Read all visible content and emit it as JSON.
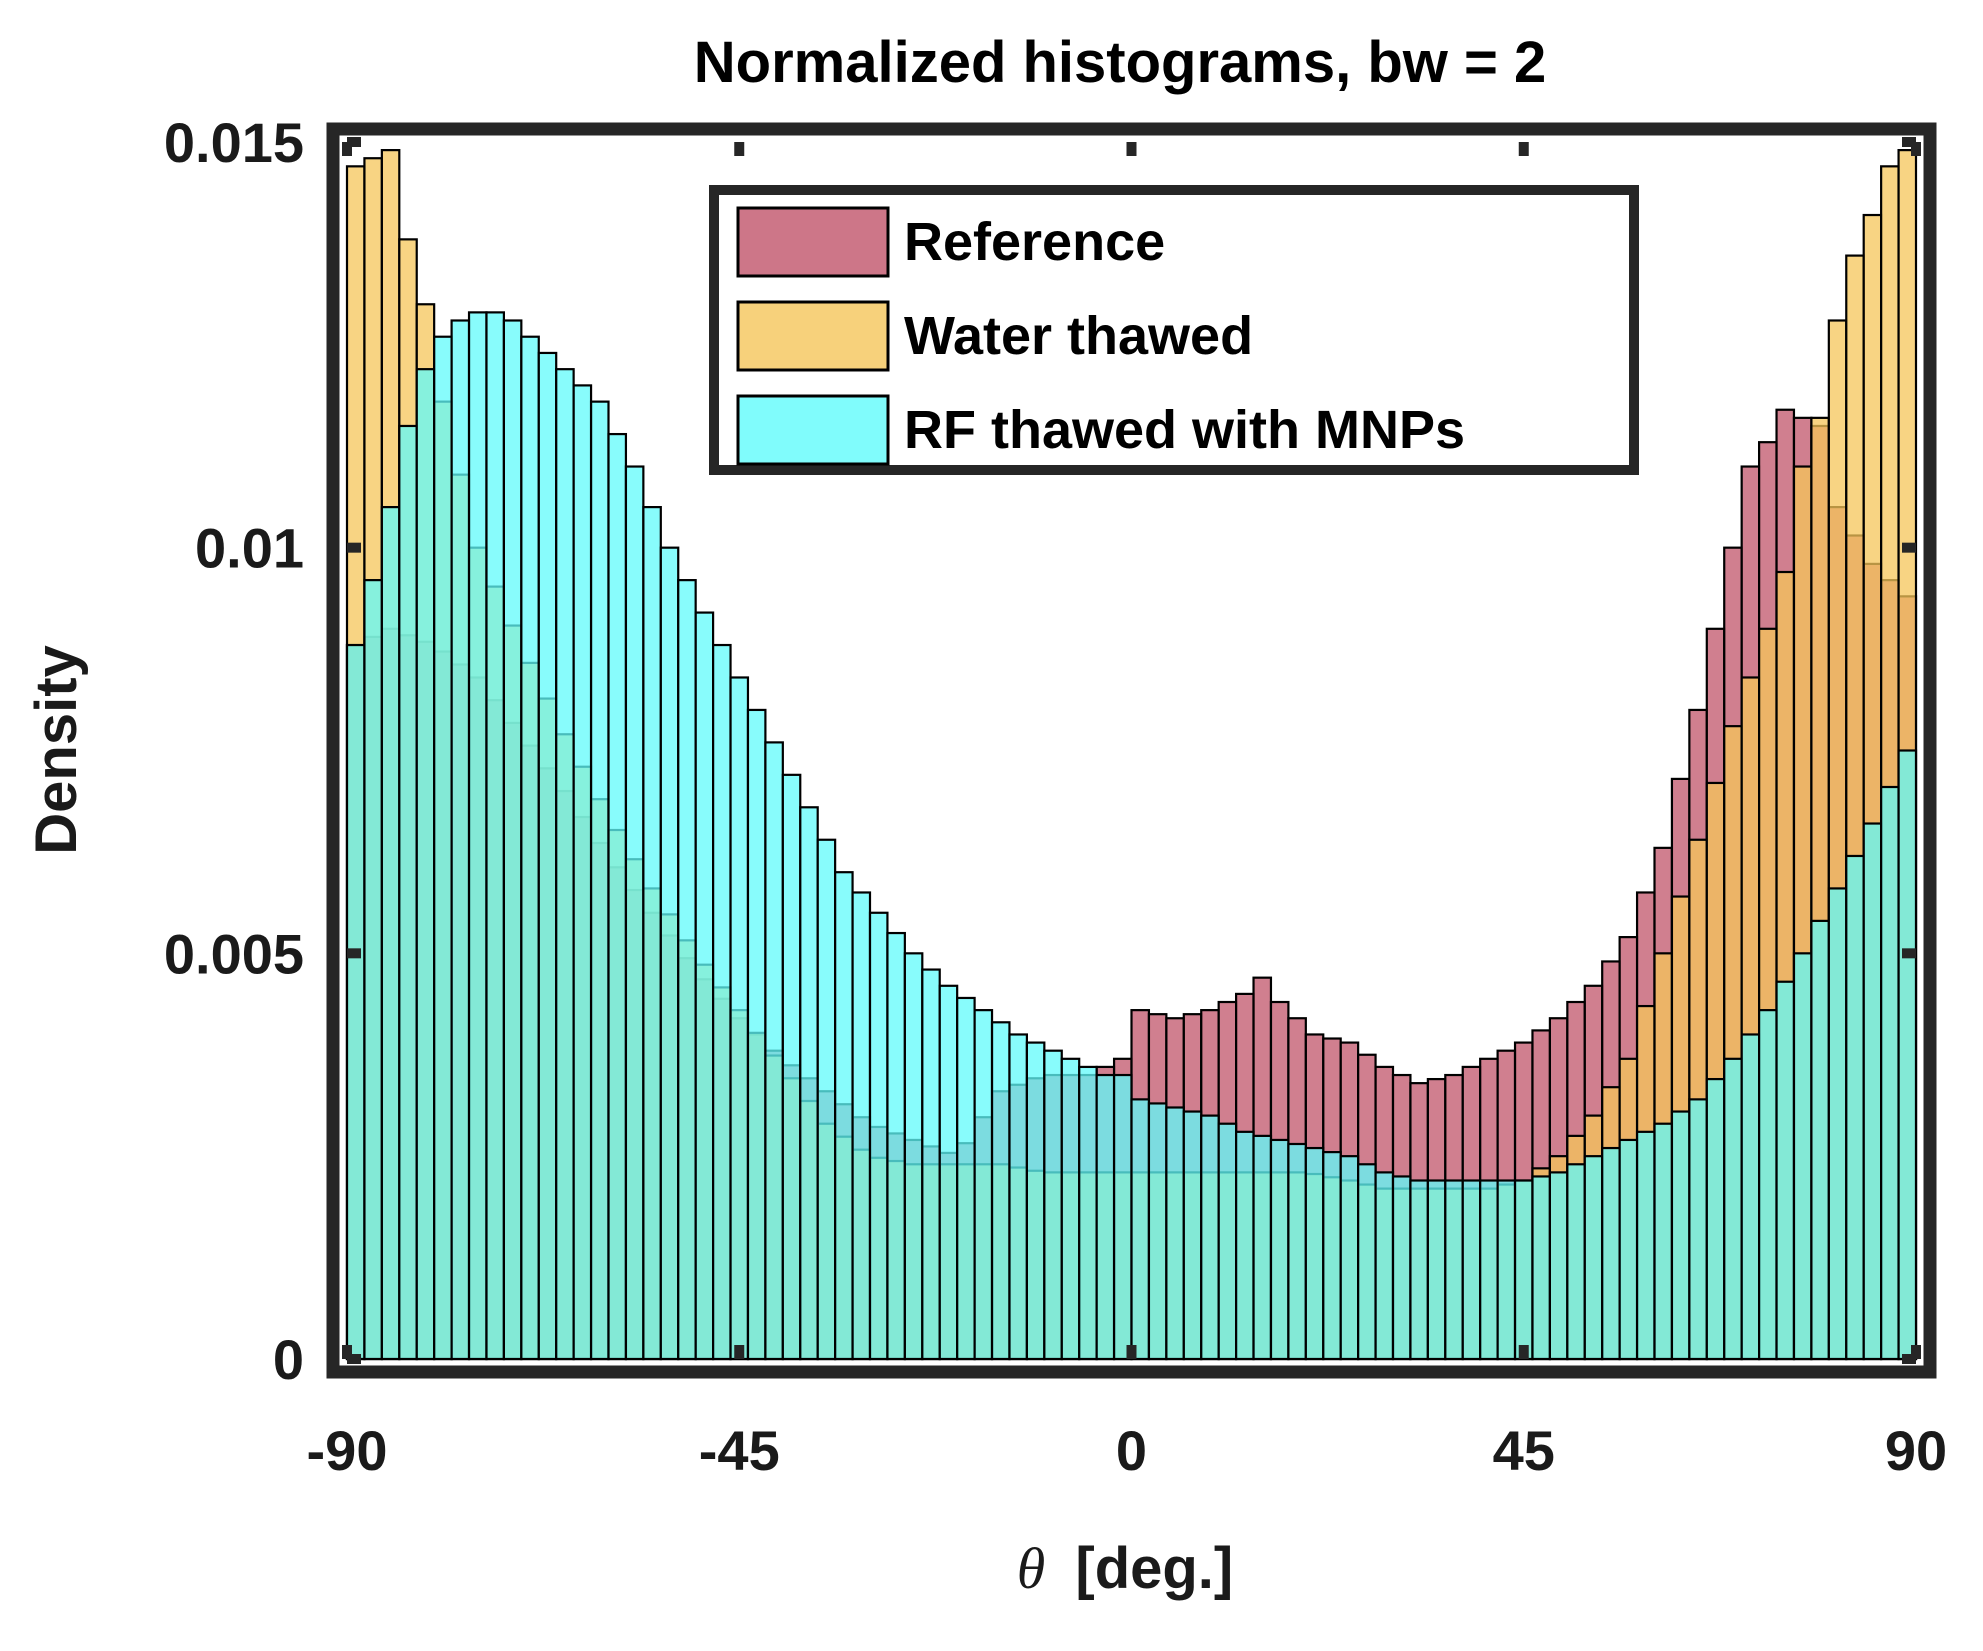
{
  "chart_data": {
    "type": "bar",
    "title": "Normalized histograms, bw = 2",
    "xlabel_symbol": "θ",
    "xlabel_unit": "[deg.]",
    "ylabel": "Density",
    "xlim": [
      -90,
      90
    ],
    "ylim": [
      0,
      0.015
    ],
    "bin_width": 2,
    "x_ticks": [
      -90,
      -45,
      0,
      45,
      90
    ],
    "x_tick_labels": [
      "-90",
      "-45",
      "0",
      "45",
      "90"
    ],
    "y_ticks": [
      0,
      0.005,
      0.01,
      0.015
    ],
    "y_tick_labels": [
      "0",
      "0.005",
      "0.01",
      "0.015"
    ],
    "grid": false,
    "legend_position": "top-center",
    "series": [
      {
        "name": "Reference",
        "color": "#c0546a",
        "anchors": [
          [
            -89,
            0.0088
          ],
          [
            -85,
            0.009
          ],
          [
            -80,
            0.0088
          ],
          [
            -75,
            0.0084
          ],
          [
            -70,
            0.0077
          ],
          [
            -65,
            0.007
          ],
          [
            -60,
            0.0062
          ],
          [
            -55,
            0.0055
          ],
          [
            -50,
            0.0048
          ],
          [
            -45,
            0.0042
          ],
          [
            -40,
            0.0037
          ],
          [
            -35,
            0.0033
          ],
          [
            -30,
            0.0029
          ],
          [
            -25,
            0.0027
          ],
          [
            -20,
            0.0025
          ],
          [
            -15,
            0.0033
          ],
          [
            -10,
            0.0035
          ],
          [
            -5,
            0.0035
          ],
          [
            -1,
            0.0037
          ],
          [
            1,
            0.0043
          ],
          [
            5,
            0.0042
          ],
          [
            9,
            0.0043
          ],
          [
            13,
            0.0045
          ],
          [
            15,
            0.0047
          ],
          [
            17,
            0.0044
          ],
          [
            21,
            0.004
          ],
          [
            25,
            0.0039
          ],
          [
            29,
            0.0036
          ],
          [
            33,
            0.0034
          ],
          [
            37,
            0.0035
          ],
          [
            41,
            0.0037
          ],
          [
            45,
            0.0039
          ],
          [
            49,
            0.0042
          ],
          [
            53,
            0.0046
          ],
          [
            57,
            0.0052
          ],
          [
            61,
            0.0063
          ],
          [
            65,
            0.008
          ],
          [
            69,
            0.01
          ],
          [
            71,
            0.011
          ],
          [
            73,
            0.0113
          ],
          [
            75,
            0.0117
          ],
          [
            77,
            0.0116
          ],
          [
            79,
            0.0115
          ],
          [
            81,
            0.0105
          ],
          [
            85,
            0.0098
          ],
          [
            89,
            0.0094
          ]
        ]
      },
      {
        "name": "Water thawed",
        "color": "#f5c55a",
        "anchors": [
          [
            -89,
            0.0147
          ],
          [
            -87,
            0.0148
          ],
          [
            -85,
            0.0149
          ],
          [
            -83,
            0.0138
          ],
          [
            -81,
            0.013
          ],
          [
            -79,
            0.0118
          ],
          [
            -75,
            0.01
          ],
          [
            -70,
            0.0088
          ],
          [
            -65,
            0.0077
          ],
          [
            -60,
            0.0067
          ],
          [
            -55,
            0.0058
          ],
          [
            -50,
            0.005
          ],
          [
            -45,
            0.0043
          ],
          [
            -40,
            0.0036
          ],
          [
            -35,
            0.0029
          ],
          [
            -30,
            0.0025
          ],
          [
            -25,
            0.0024
          ],
          [
            -20,
            0.0024
          ],
          [
            -15,
            0.0024
          ],
          [
            -10,
            0.0023
          ],
          [
            -5,
            0.0023
          ],
          [
            0,
            0.0023
          ],
          [
            5,
            0.0023
          ],
          [
            10,
            0.0023
          ],
          [
            15,
            0.0023
          ],
          [
            20,
            0.0023
          ],
          [
            25,
            0.0022
          ],
          [
            29,
            0.0021
          ],
          [
            33,
            0.0021
          ],
          [
            37,
            0.0021
          ],
          [
            41,
            0.0021
          ],
          [
            45,
            0.0022
          ],
          [
            49,
            0.0025
          ],
          [
            53,
            0.003
          ],
          [
            57,
            0.0037
          ],
          [
            61,
            0.005
          ],
          [
            65,
            0.0064
          ],
          [
            69,
            0.0078
          ],
          [
            73,
            0.009
          ],
          [
            75,
            0.0097
          ],
          [
            77,
            0.011
          ],
          [
            79,
            0.0116
          ],
          [
            81,
            0.0128
          ],
          [
            83,
            0.0136
          ],
          [
            85,
            0.0141
          ],
          [
            87,
            0.0147
          ],
          [
            89,
            0.0149
          ]
        ]
      },
      {
        "name": "RF thawed with MNPs",
        "color": "#60fbfb",
        "anchors": [
          [
            -89,
            0.0088
          ],
          [
            -87,
            0.0096
          ],
          [
            -85,
            0.0105
          ],
          [
            -83,
            0.0115
          ],
          [
            -81,
            0.0122
          ],
          [
            -79,
            0.0126
          ],
          [
            -77,
            0.0128
          ],
          [
            -75,
            0.0129
          ],
          [
            -73,
            0.0129
          ],
          [
            -71,
            0.0128
          ],
          [
            -69,
            0.0126
          ],
          [
            -67,
            0.0124
          ],
          [
            -65,
            0.0122
          ],
          [
            -61,
            0.0118
          ],
          [
            -57,
            0.011
          ],
          [
            -53,
            0.01
          ],
          [
            -49,
            0.0092
          ],
          [
            -45,
            0.0084
          ],
          [
            -41,
            0.0076
          ],
          [
            -37,
            0.0068
          ],
          [
            -33,
            0.006
          ],
          [
            -29,
            0.0055
          ],
          [
            -25,
            0.005
          ],
          [
            -21,
            0.0046
          ],
          [
            -17,
            0.0043
          ],
          [
            -13,
            0.004
          ],
          [
            -9,
            0.0038
          ],
          [
            -5,
            0.0036
          ],
          [
            -3,
            0.0035
          ],
          [
            -1,
            0.0035
          ],
          [
            1,
            0.0032
          ],
          [
            5,
            0.0031
          ],
          [
            9,
            0.003
          ],
          [
            13,
            0.0028
          ],
          [
            17,
            0.0027
          ],
          [
            21,
            0.0026
          ],
          [
            25,
            0.0025
          ],
          [
            29,
            0.0023
          ],
          [
            33,
            0.0022
          ],
          [
            37,
            0.0022
          ],
          [
            41,
            0.0022
          ],
          [
            45,
            0.0022
          ],
          [
            49,
            0.0023
          ],
          [
            53,
            0.0025
          ],
          [
            57,
            0.0027
          ],
          [
            61,
            0.0029
          ],
          [
            65,
            0.0032
          ],
          [
            69,
            0.0037
          ],
          [
            73,
            0.0043
          ],
          [
            77,
            0.005
          ],
          [
            81,
            0.0058
          ],
          [
            85,
            0.0066
          ],
          [
            89,
            0.0075
          ]
        ]
      }
    ]
  }
}
